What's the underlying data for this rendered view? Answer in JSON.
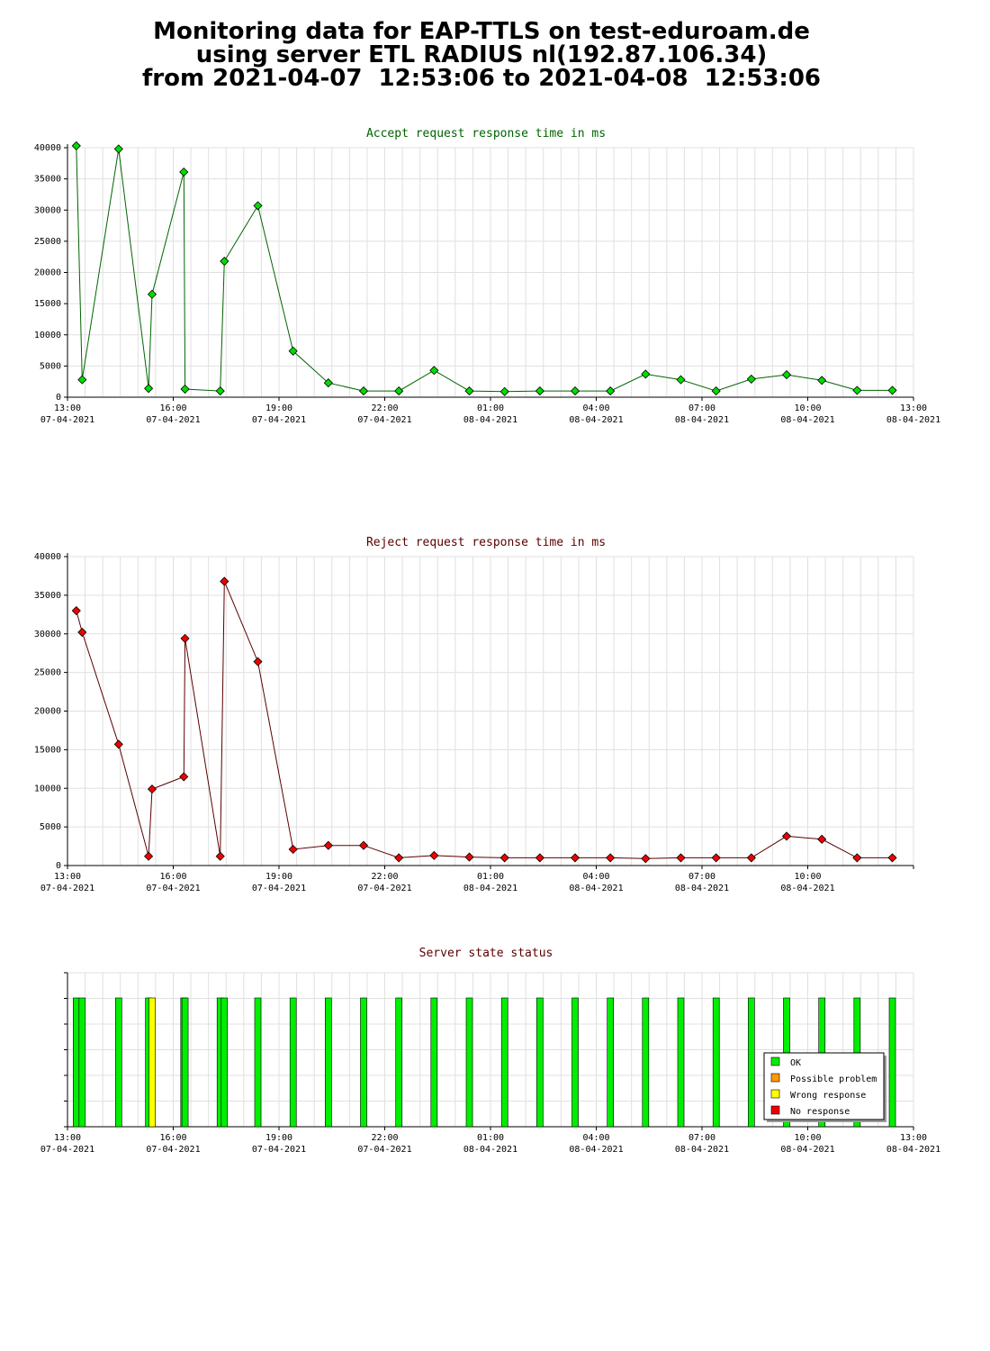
{
  "header": {
    "line1": "Monitoring data for EAP-TTLS on test-eduroam.de",
    "line2": "using server ETL RADIUS nl(192.87.106.34)",
    "line3": "from 2021-04-07  12:53:06 to 2021-04-08  12:53:06"
  },
  "colors": {
    "accept_series": "#006400",
    "reject_series": "#5a0000",
    "accept_marker": "#00dd00",
    "reject_marker": "#ee0000",
    "ok": "#00ee00",
    "possible_problem": "#ff9900",
    "wrong_response": "#ffff00",
    "no_response": "#ee0000"
  },
  "chart_data": [
    {
      "type": "line",
      "title": "Accept request response time in ms",
      "xlabel": "",
      "ylabel": "",
      "xlim": [
        "2021-04-07 13:00",
        "2021-04-08 13:00"
      ],
      "ylim": [
        0,
        40000
      ],
      "yticks": [
        0,
        5000,
        10000,
        15000,
        20000,
        25000,
        30000,
        35000,
        40000
      ],
      "xticks": [
        {
          "time": "13:00",
          "date": "07-04-2021"
        },
        {
          "time": "16:00",
          "date": "07-04-2021"
        },
        {
          "time": "19:00",
          "date": "07-04-2021"
        },
        {
          "time": "22:00",
          "date": "07-04-2021"
        },
        {
          "time": "01:00",
          "date": "08-04-2021"
        },
        {
          "time": "04:00",
          "date": "08-04-2021"
        },
        {
          "time": "07:00",
          "date": "08-04-2021"
        },
        {
          "time": "10:00",
          "date": "08-04-2021"
        },
        {
          "time": "13:00",
          "date": "08-04-2021"
        }
      ],
      "grid": true,
      "series": [
        {
          "x": [
            "2021-04-07 13:15",
            "2021-04-07 13:25",
            "2021-04-07 14:27",
            "2021-04-07 15:18",
            "2021-04-07 15:24",
            "2021-04-07 16:18",
            "2021-04-07 16:20",
            "2021-04-07 17:20",
            "2021-04-07 17:27",
            "2021-04-07 18:24",
            "2021-04-07 19:24",
            "2021-04-07 20:24",
            "2021-04-07 21:24",
            "2021-04-07 22:24",
            "2021-04-07 23:24",
            "2021-04-08 00:24",
            "2021-04-08 01:24",
            "2021-04-08 02:24",
            "2021-04-08 03:24",
            "2021-04-08 04:24",
            "2021-04-08 05:24",
            "2021-04-08 06:24",
            "2021-04-08 07:24",
            "2021-04-08 08:24",
            "2021-04-08 09:24",
            "2021-04-08 10:24",
            "2021-04-08 11:24",
            "2021-04-08 12:24"
          ],
          "values": [
            40300,
            2800,
            39800,
            1400,
            16500,
            36100,
            1300,
            1000,
            21800,
            30700,
            7400,
            2300,
            1000,
            1000,
            4300,
            1000,
            900,
            1000,
            1000,
            1000,
            3700,
            2800,
            1000,
            2900,
            3600,
            2700,
            1100,
            1100
          ]
        }
      ]
    },
    {
      "type": "line",
      "title": "Reject request response time in ms",
      "xlabel": "",
      "ylabel": "",
      "xlim": [
        "2021-04-07 13:00",
        "2021-04-08 13:00"
      ],
      "ylim": [
        0,
        40000
      ],
      "yticks": [
        0,
        5000,
        10000,
        15000,
        20000,
        25000,
        30000,
        35000,
        40000
      ],
      "xticks": [
        {
          "time": "13:00",
          "date": "07-04-2021"
        },
        {
          "time": "16:00",
          "date": "07-04-2021"
        },
        {
          "time": "19:00",
          "date": "07-04-2021"
        },
        {
          "time": "22:00",
          "date": "07-04-2021"
        },
        {
          "time": "01:00",
          "date": "08-04-2021"
        },
        {
          "time": "04:00",
          "date": "08-04-2021"
        },
        {
          "time": "07:00",
          "date": "08-04-2021"
        },
        {
          "time": "10:00",
          "date": "08-04-2021"
        }
      ],
      "grid": true,
      "series": [
        {
          "x": [
            "2021-04-07 13:15",
            "2021-04-07 13:25",
            "2021-04-07 14:27",
            "2021-04-07 15:18",
            "2021-04-07 15:24",
            "2021-04-07 16:18",
            "2021-04-07 16:20",
            "2021-04-07 17:20",
            "2021-04-07 17:27",
            "2021-04-07 18:24",
            "2021-04-07 19:24",
            "2021-04-07 20:24",
            "2021-04-07 21:24",
            "2021-04-07 22:24",
            "2021-04-07 23:24",
            "2021-04-08 00:24",
            "2021-04-08 01:24",
            "2021-04-08 02:24",
            "2021-04-08 03:24",
            "2021-04-08 04:24",
            "2021-04-08 05:24",
            "2021-04-08 06:24",
            "2021-04-08 07:24",
            "2021-04-08 08:24",
            "2021-04-08 09:24",
            "2021-04-08 10:24",
            "2021-04-08 11:24",
            "2021-04-08 12:24"
          ],
          "values": [
            33000,
            30200,
            15700,
            1200,
            9900,
            11500,
            29400,
            1200,
            36800,
            26400,
            2100,
            2600,
            2600,
            1000,
            1300,
            1100,
            1000,
            1000,
            1000,
            1000,
            900,
            1000,
            1000,
            1000,
            3800,
            3400,
            1000,
            1000
          ]
        }
      ]
    },
    {
      "type": "bar",
      "title": "Server state status",
      "xlim": [
        "2021-04-07 13:00",
        "2021-04-08 13:00"
      ],
      "xticks": [
        {
          "time": "13:00",
          "date": "07-04-2021"
        },
        {
          "time": "16:00",
          "date": "07-04-2021"
        },
        {
          "time": "19:00",
          "date": "07-04-2021"
        },
        {
          "time": "22:00",
          "date": "07-04-2021"
        },
        {
          "time": "01:00",
          "date": "08-04-2021"
        },
        {
          "time": "04:00",
          "date": "08-04-2021"
        },
        {
          "time": "07:00",
          "date": "08-04-2021"
        },
        {
          "time": "10:00",
          "date": "08-04-2021"
        },
        {
          "time": "13:00",
          "date": "08-04-2021"
        }
      ],
      "grid": true,
      "legend_position": "bottom-right",
      "legend": [
        {
          "key": "ok",
          "label": "OK"
        },
        {
          "key": "possible_problem",
          "label": "Possible problem"
        },
        {
          "key": "wrong_response",
          "label": "Wrong response"
        },
        {
          "key": "no_response",
          "label": "No response"
        }
      ],
      "events": [
        {
          "time": "2021-04-07 13:15",
          "status": "ok"
        },
        {
          "time": "2021-04-07 13:25",
          "status": "ok"
        },
        {
          "time": "2021-04-07 14:27",
          "status": "ok"
        },
        {
          "time": "2021-04-07 15:18",
          "status": "ok"
        },
        {
          "time": "2021-04-07 15:24",
          "status": "wrong_response"
        },
        {
          "time": "2021-04-07 16:18",
          "status": "ok"
        },
        {
          "time": "2021-04-07 16:20",
          "status": "ok"
        },
        {
          "time": "2021-04-07 17:20",
          "status": "ok"
        },
        {
          "time": "2021-04-07 17:27",
          "status": "ok"
        },
        {
          "time": "2021-04-07 18:24",
          "status": "ok"
        },
        {
          "time": "2021-04-07 19:24",
          "status": "ok"
        },
        {
          "time": "2021-04-07 20:24",
          "status": "ok"
        },
        {
          "time": "2021-04-07 21:24",
          "status": "ok"
        },
        {
          "time": "2021-04-07 22:24",
          "status": "ok"
        },
        {
          "time": "2021-04-07 23:24",
          "status": "ok"
        },
        {
          "time": "2021-04-08 00:24",
          "status": "ok"
        },
        {
          "time": "2021-04-08 01:24",
          "status": "ok"
        },
        {
          "time": "2021-04-08 02:24",
          "status": "ok"
        },
        {
          "time": "2021-04-08 03:24",
          "status": "ok"
        },
        {
          "time": "2021-04-08 04:24",
          "status": "ok"
        },
        {
          "time": "2021-04-08 05:24",
          "status": "ok"
        },
        {
          "time": "2021-04-08 06:24",
          "status": "ok"
        },
        {
          "time": "2021-04-08 07:24",
          "status": "ok"
        },
        {
          "time": "2021-04-08 08:24",
          "status": "ok"
        },
        {
          "time": "2021-04-08 09:24",
          "status": "ok"
        },
        {
          "time": "2021-04-08 10:24",
          "status": "ok"
        },
        {
          "time": "2021-04-08 11:24",
          "status": "ok"
        },
        {
          "time": "2021-04-08 12:24",
          "status": "ok"
        }
      ]
    }
  ]
}
